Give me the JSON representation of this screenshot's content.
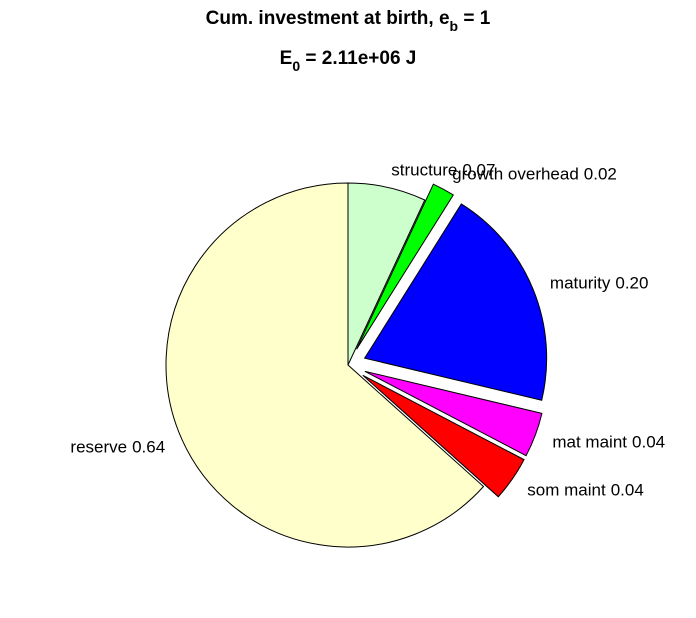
{
  "chart_data": {
    "type": "pie",
    "title": [
      "Cum. investment at birth, e",
      "b",
      " = 1"
    ],
    "subtitle": [
      "E",
      "0",
      " = 2.11e+06 J"
    ],
    "categories": [
      "structure",
      "growth overhead",
      "maturity",
      "mat maint",
      "som maint",
      "reserve"
    ],
    "values": [
      0.07,
      0.02,
      0.2,
      0.04,
      0.04,
      0.64
    ],
    "value_labels": [
      "0.07",
      "0.02",
      "0.20",
      "0.04",
      "0.04",
      "0.64"
    ],
    "colors": [
      "#ccffcc",
      "#00ff00",
      "#0000ff",
      "#ff00ff",
      "#ff0000",
      "#ffffcc"
    ],
    "explode": [
      0,
      1,
      1,
      1,
      1,
      0
    ]
  }
}
